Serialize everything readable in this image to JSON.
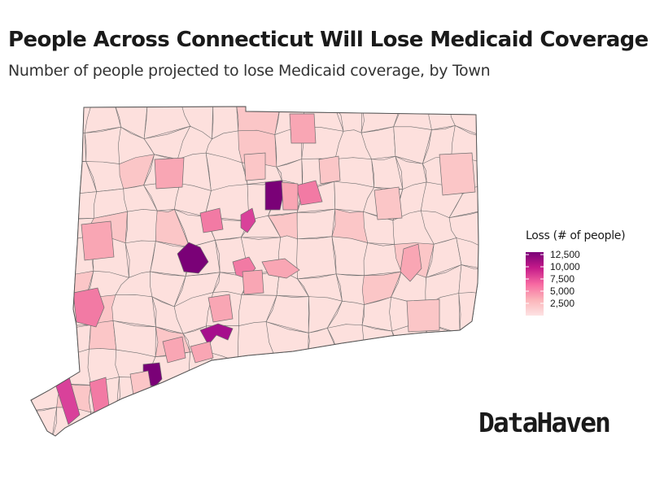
{
  "header": {
    "title": "People Across Connecticut Will Lose Medicaid Coverage",
    "subtitle": "Number of people projected to lose Medicaid coverage, by Town"
  },
  "legend": {
    "title": "Loss (# of people)",
    "labels": [
      "12,500",
      "10,000",
      "7,500",
      "5,000",
      "2,500"
    ],
    "color_low": "#fde3e3",
    "color_high": "#7a0177"
  },
  "brand": {
    "name": "DataHaven"
  },
  "colors": {
    "base_fill": "#fde0df",
    "border": "#6e6e6e",
    "scale": [
      "#fde0dd",
      "#fbc6c7",
      "#f9a6b4",
      "#f27aa4",
      "#d9419a",
      "#a60f8c",
      "#7a0177"
    ]
  },
  "map_data": {
    "highlighted_towns": [
      {
        "level": 6
      },
      {
        "level": 6
      },
      {
        "level": 6
      },
      {
        "level": 5
      },
      {
        "level": 4
      },
      {
        "level": 4
      },
      {
        "level": 3
      },
      {
        "level": 3
      },
      {
        "level": 3
      },
      {
        "level": 3
      },
      {
        "level": 3
      },
      {
        "level": 2
      },
      {
        "level": 2
      },
      {
        "level": 2
      },
      {
        "level": 2
      },
      {
        "level": 2
      },
      {
        "level": 2
      },
      {
        "level": 2
      },
      {
        "level": 2
      },
      {
        "level": 2
      },
      {
        "level": 2
      },
      {
        "level": 1
      },
      {
        "level": 1
      },
      {
        "level": 1
      },
      {
        "level": 1
      },
      {
        "level": 1
      },
      {
        "level": 1
      }
    ]
  }
}
